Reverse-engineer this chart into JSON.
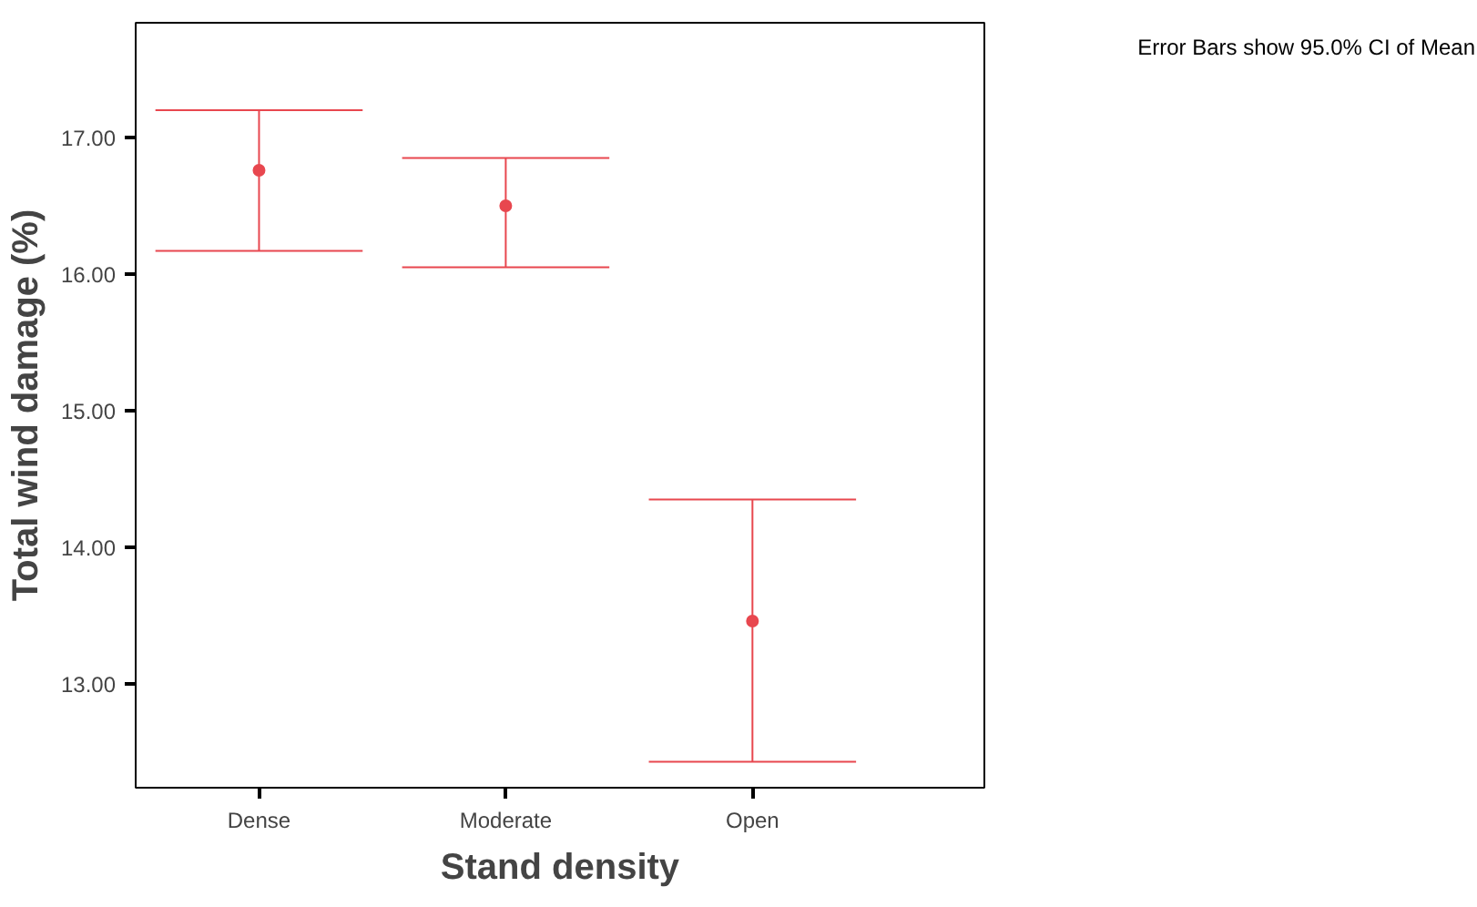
{
  "chart_data": {
    "type": "scatter",
    "xlabel": "Stand density",
    "ylabel": "Total wind damage (%)",
    "categories": [
      "Dense",
      "Moderate",
      "Open"
    ],
    "series": [
      {
        "color": "#e8474f",
        "values": [
          16.76,
          16.5,
          13.46
        ],
        "errors": [
          [
            16.17,
            17.2
          ],
          [
            16.05,
            16.85
          ],
          [
            12.43,
            14.35
          ]
        ]
      }
    ],
    "ylim": [
      12.24,
      17.84
    ],
    "yticks": [
      {
        "value": 13,
        "label": "13.00"
      },
      {
        "value": 14,
        "label": "14.00"
      },
      {
        "value": 15,
        "label": "15.00"
      },
      {
        "value": 16,
        "label": "16.00"
      },
      {
        "value": 17,
        "label": "17.00"
      }
    ],
    "grid": false,
    "marker": "circle",
    "annotations": [
      "Error Bars show 95.0% CI of Mean"
    ]
  }
}
